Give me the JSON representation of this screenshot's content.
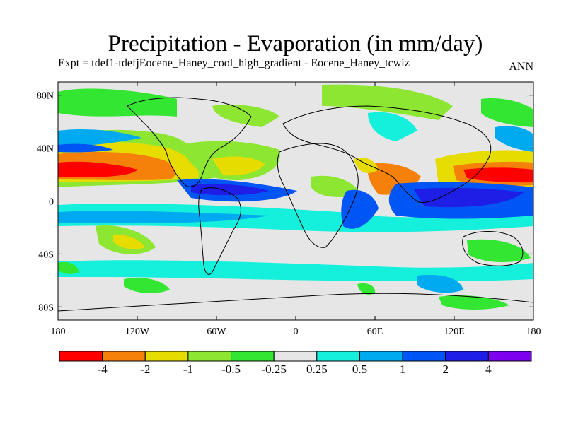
{
  "title": "Precipitation - Evaporation (in mm/day)",
  "subtitle": "Expt = tdef1-tdefjEocene_Haney_cool_high_gradient - Eocene_Haney_tcwiz",
  "season": "ANN",
  "map": {
    "lon_range": [
      -180,
      180
    ],
    "lat_range": [
      -90,
      90
    ],
    "lat_ticks": [
      {
        "value": 80,
        "label": "80N"
      },
      {
        "value": 40,
        "label": "40N"
      },
      {
        "value": 0,
        "label": "0"
      },
      {
        "value": -40,
        "label": "40S"
      },
      {
        "value": -80,
        "label": "80S"
      }
    ],
    "lon_ticks": [
      {
        "value": -180,
        "label": "180"
      },
      {
        "value": -120,
        "label": "120W"
      },
      {
        "value": -60,
        "label": "60W"
      },
      {
        "value": 0,
        "label": "0"
      },
      {
        "value": 60,
        "label": "60E"
      },
      {
        "value": 120,
        "label": "120E"
      },
      {
        "value": 180,
        "label": "180"
      }
    ]
  },
  "colorbar": {
    "colors": [
      "#ff0000",
      "#f5800a",
      "#e6dc00",
      "#8ce632",
      "#32e632",
      "#e6e6e6",
      "#14f0dc",
      "#00aaf0",
      "#0055f5",
      "#1e1ee6",
      "#7d00f0"
    ],
    "labels": [
      "-4",
      "-2",
      "-1",
      "-0.5",
      "-0.25",
      "0.25",
      "0.5",
      "1",
      "2",
      "4"
    ]
  }
}
